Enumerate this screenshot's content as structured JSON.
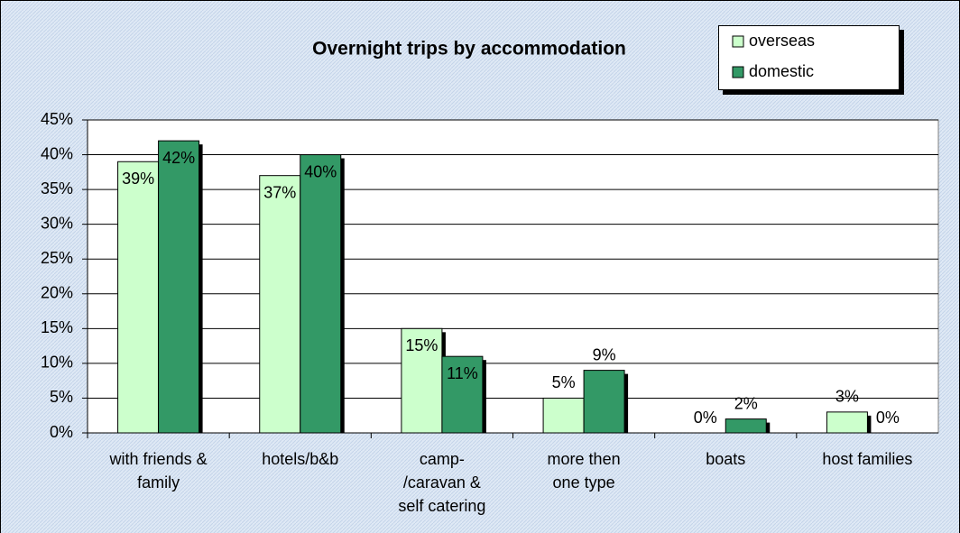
{
  "chart_data": {
    "type": "bar",
    "title": "Overnight trips by accommodation",
    "categories": [
      [
        "with friends &",
        "family"
      ],
      [
        "hotels/b&b"
      ],
      [
        "camp-",
        "/caravan &",
        "self catering"
      ],
      [
        "more then",
        "one type"
      ],
      [
        "boats"
      ],
      [
        "host families"
      ]
    ],
    "series": [
      {
        "name": "overseas",
        "color": "#ccffcc",
        "values": [
          39,
          37,
          15,
          5,
          0,
          3
        ],
        "value_labels": [
          "39%",
          "37%",
          "15%",
          "5%",
          "0%",
          "3%"
        ]
      },
      {
        "name": "domestic",
        "color": "#339966",
        "values": [
          42,
          40,
          11,
          9,
          2,
          0
        ],
        "value_labels": [
          "42%",
          "40%",
          "11%",
          "9%",
          "2%",
          "0%"
        ]
      }
    ],
    "ylim": [
      0,
      45
    ],
    "yticks": [
      {
        "value": 0,
        "label": "0%"
      },
      {
        "value": 5,
        "label": "5%"
      },
      {
        "value": 10,
        "label": "10%"
      },
      {
        "value": 15,
        "label": "15%"
      },
      {
        "value": 20,
        "label": "20%"
      },
      {
        "value": 25,
        "label": "25%"
      },
      {
        "value": 30,
        "label": "30%"
      },
      {
        "value": 35,
        "label": "35%"
      },
      {
        "value": 40,
        "label": "40%"
      },
      {
        "value": 45,
        "label": "45%"
      }
    ],
    "grid": true,
    "legend": "top-right"
  }
}
